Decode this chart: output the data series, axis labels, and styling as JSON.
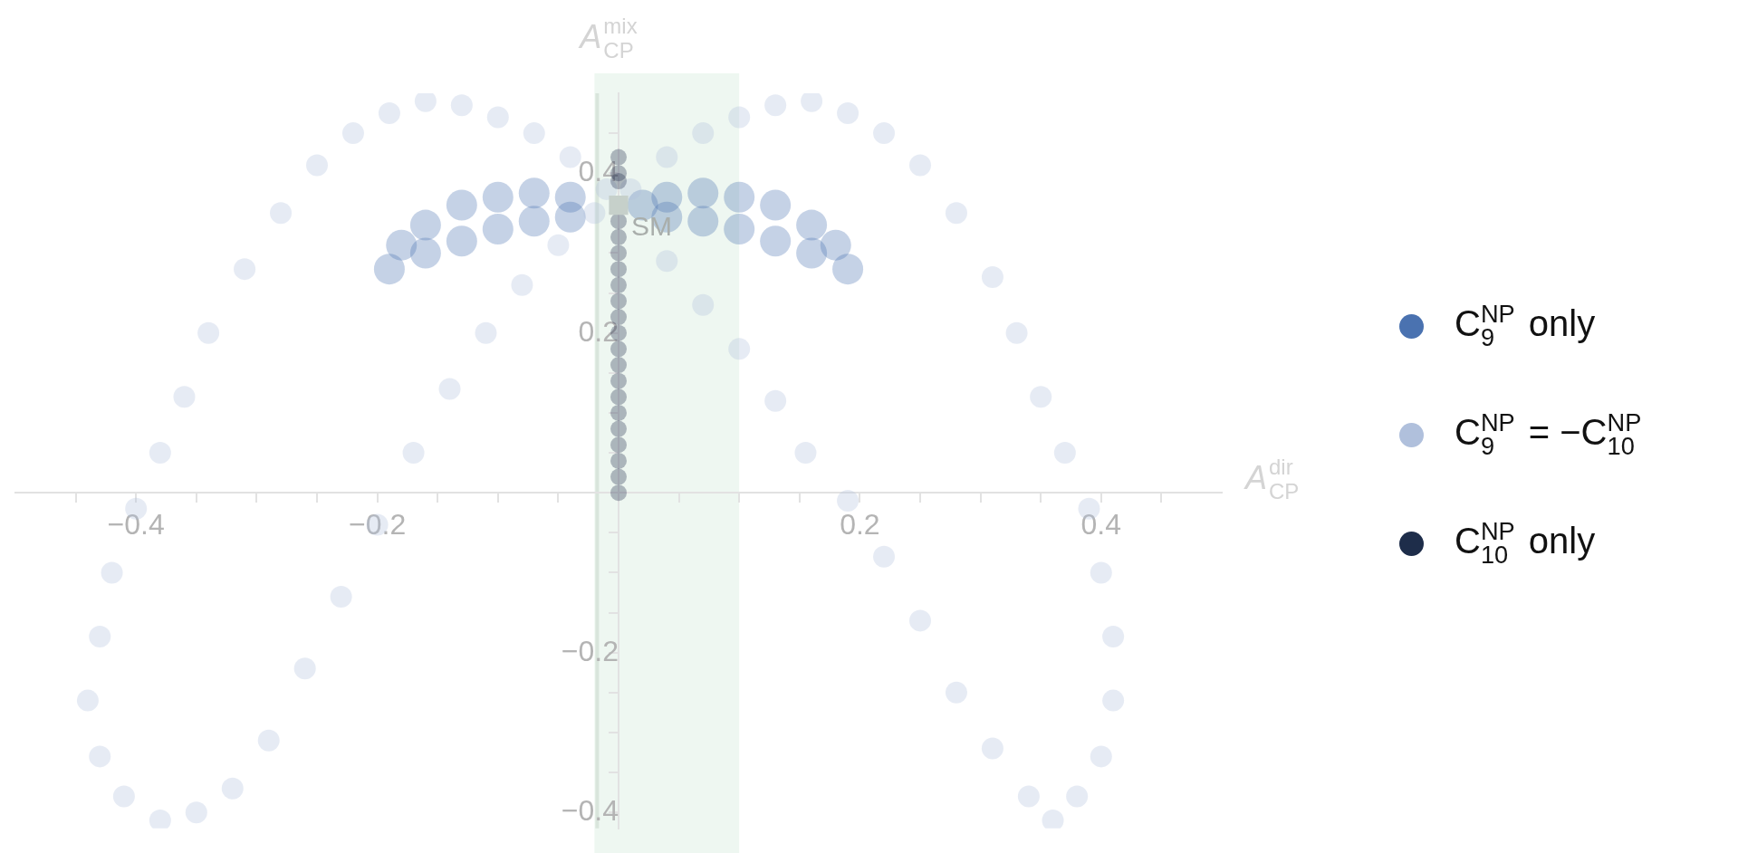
{
  "chart_data": {
    "type": "scatter",
    "xlabel": "A$^{dir}$$_{CP}$",
    "ylabel": "A$^{mix}$$_{CP}$",
    "xlim": [
      -0.5,
      0.5
    ],
    "ylim": [
      -0.42,
      0.5
    ],
    "xticks": [
      {
        "value": -0.45,
        "label": null
      },
      {
        "value": -0.4,
        "label": "−0.4"
      },
      {
        "value": -0.35,
        "label": null
      },
      {
        "value": -0.3,
        "label": null
      },
      {
        "value": -0.25,
        "label": null
      },
      {
        "value": -0.2,
        "label": "−0.2"
      },
      {
        "value": -0.15,
        "label": null
      },
      {
        "value": -0.1,
        "label": null
      },
      {
        "value": -0.05,
        "label": null
      },
      {
        "value": 0.05,
        "label": null
      },
      {
        "value": 0.1,
        "label": null
      },
      {
        "value": 0.15,
        "label": null
      },
      0.2,
      {
        "value": 0.25,
        "label": null
      },
      {
        "value": 0.3,
        "label": null
      },
      {
        "value": 0.35,
        "label": null
      },
      0.4,
      {
        "value": 0.45,
        "label": null
      }
    ],
    "yticks": [
      {
        "value": -0.4,
        "label": "−0.4"
      },
      {
        "value": -0.35,
        "label": null
      },
      {
        "value": -0.3,
        "label": null
      },
      {
        "value": -0.25,
        "label": null
      },
      {
        "value": -0.2,
        "label": "−0.2"
      },
      {
        "value": -0.15,
        "label": null
      },
      {
        "value": -0.1,
        "label": null
      },
      {
        "value": -0.05,
        "label": null
      },
      {
        "value": 0.05,
        "label": null
      },
      {
        "value": 0.1,
        "label": null
      },
      {
        "value": 0.15,
        "label": null
      },
      0.2,
      {
        "value": 0.25,
        "label": null
      },
      {
        "value": 0.3,
        "label": null
      },
      {
        "value": 0.35,
        "label": null
      },
      0.4,
      {
        "value": 0.45,
        "label": null
      }
    ],
    "bands": [
      {
        "axis": "x",
        "from": -0.02,
        "to": 0.1,
        "color": "#eef7f1"
      }
    ],
    "legend": "right",
    "grid": false,
    "annotations": [
      {
        "text": "SM",
        "x": 0,
        "y": 0.36
      }
    ],
    "series": [
      {
        "name": "C$_{9}$$^{NP}$ only",
        "color": "#4a72b0",
        "marker": "circle",
        "x": [
          -0.04,
          -0.04,
          -0.07,
          -0.07,
          -0.1,
          -0.1,
          -0.13,
          -0.13,
          -0.16,
          -0.16,
          -0.18,
          -0.19,
          0.02,
          0.04,
          0.04,
          0.07,
          0.07,
          0.1,
          0.1,
          0.13,
          0.13,
          0.16,
          0.16,
          0.18,
          0.19
        ],
        "values": [
          0.37,
          0.345,
          0.375,
          0.34,
          0.37,
          0.33,
          0.36,
          0.315,
          0.335,
          0.3,
          0.31,
          0.28,
          0.36,
          0.37,
          0.345,
          0.375,
          0.34,
          0.37,
          0.33,
          0.36,
          0.315,
          0.335,
          0.3,
          0.31,
          0.28
        ]
      },
      {
        "name": "C$_{9}$$^{NP}$ = −C$_{10}$$^{NP}$",
        "color": "#b0c0dc",
        "marker": "circle",
        "x": [
          -0.01,
          -0.04,
          -0.07,
          -0.1,
          -0.13,
          -0.16,
          -0.19,
          -0.22,
          -0.25,
          -0.28,
          -0.31,
          -0.34,
          -0.36,
          -0.38,
          -0.4,
          -0.42,
          -0.43,
          -0.44,
          -0.43,
          -0.41,
          -0.38,
          -0.35,
          -0.32,
          -0.29,
          -0.26,
          -0.23,
          -0.2,
          -0.17,
          -0.14,
          -0.11,
          -0.08,
          -0.05,
          -0.02,
          0.01,
          0.04,
          0.07,
          0.1,
          0.13,
          0.16,
          0.19,
          0.22,
          0.25,
          0.28,
          0.31,
          0.33,
          0.35,
          0.37,
          0.39,
          0.4,
          0.41,
          0.41,
          0.4,
          0.38,
          0.36,
          0.34,
          0.31,
          0.28,
          0.25,
          0.22,
          0.19,
          0.155,
          0.13,
          0.1,
          0.07,
          0.04
        ],
        "values": [
          0.38,
          0.42,
          0.45,
          0.47,
          0.485,
          0.49,
          0.475,
          0.45,
          0.41,
          0.35,
          0.28,
          0.2,
          0.12,
          0.05,
          -0.02,
          -0.1,
          -0.18,
          -0.26,
          -0.33,
          -0.38,
          -0.41,
          -0.4,
          -0.37,
          -0.31,
          -0.22,
          -0.13,
          -0.04,
          0.05,
          0.13,
          0.2,
          0.26,
          0.31,
          0.35,
          0.38,
          0.42,
          0.45,
          0.47,
          0.485,
          0.49,
          0.475,
          0.45,
          0.41,
          0.35,
          0.27,
          0.2,
          0.12,
          0.05,
          -0.02,
          -0.1,
          -0.18,
          -0.26,
          -0.33,
          -0.38,
          -0.41,
          -0.38,
          -0.32,
          -0.25,
          -0.16,
          -0.08,
          -0.01,
          0.05,
          0.115,
          0.18,
          0.235,
          0.29
        ]
      },
      {
        "name": "C$_{10}$$^{NP}$ only",
        "color": "#1e2d4a",
        "marker": "circle",
        "x": [
          0,
          0,
          0,
          0,
          0,
          0,
          0,
          0,
          0,
          0,
          0,
          0,
          0,
          0,
          0,
          0,
          0,
          0,
          0,
          0,
          0
        ],
        "values": [
          0,
          0.02,
          0.04,
          0.06,
          0.08,
          0.1,
          0.12,
          0.14,
          0.16,
          0.18,
          0.2,
          0.22,
          0.24,
          0.26,
          0.28,
          0.3,
          0.32,
          0.34,
          0.39,
          0.4,
          0.42
        ]
      },
      {
        "color": "#c6d0ca",
        "marker": "square",
        "x": [
          0
        ],
        "values": [
          0.36
        ]
      }
    ]
  }
}
